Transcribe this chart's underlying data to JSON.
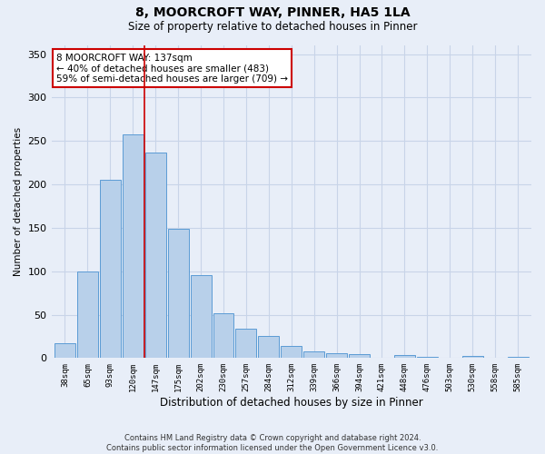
{
  "title1": "8, MOORCROFT WAY, PINNER, HA5 1LA",
  "title2": "Size of property relative to detached houses in Pinner",
  "xlabel": "Distribution of detached houses by size in Pinner",
  "ylabel": "Number of detached properties",
  "categories": [
    "38sqm",
    "65sqm",
    "93sqm",
    "120sqm",
    "147sqm",
    "175sqm",
    "202sqm",
    "230sqm",
    "257sqm",
    "284sqm",
    "312sqm",
    "339sqm",
    "366sqm",
    "394sqm",
    "421sqm",
    "448sqm",
    "476sqm",
    "503sqm",
    "530sqm",
    "558sqm",
    "585sqm"
  ],
  "bar_heights": [
    17,
    100,
    205,
    258,
    237,
    149,
    95,
    52,
    34,
    25,
    14,
    8,
    6,
    5,
    0,
    4,
    1,
    0,
    2,
    0,
    1
  ],
  "bar_color": "#b8d0ea",
  "bar_edge_color": "#5b9bd5",
  "grid_color": "#c8d4e8",
  "background_color": "#e8eef8",
  "vline_color": "#cc0000",
  "vline_x": 3.5,
  "annotation_text": "8 MOORCROFT WAY: 137sqm\n← 40% of detached houses are smaller (483)\n59% of semi-detached houses are larger (709) →",
  "annotation_box_facecolor": "#ffffff",
  "annotation_box_edgecolor": "#cc0000",
  "footer1": "Contains HM Land Registry data © Crown copyright and database right 2024.",
  "footer2": "Contains public sector information licensed under the Open Government Licence v3.0.",
  "ylim": [
    0,
    360
  ],
  "yticks": [
    0,
    50,
    100,
    150,
    200,
    250,
    300,
    350
  ]
}
